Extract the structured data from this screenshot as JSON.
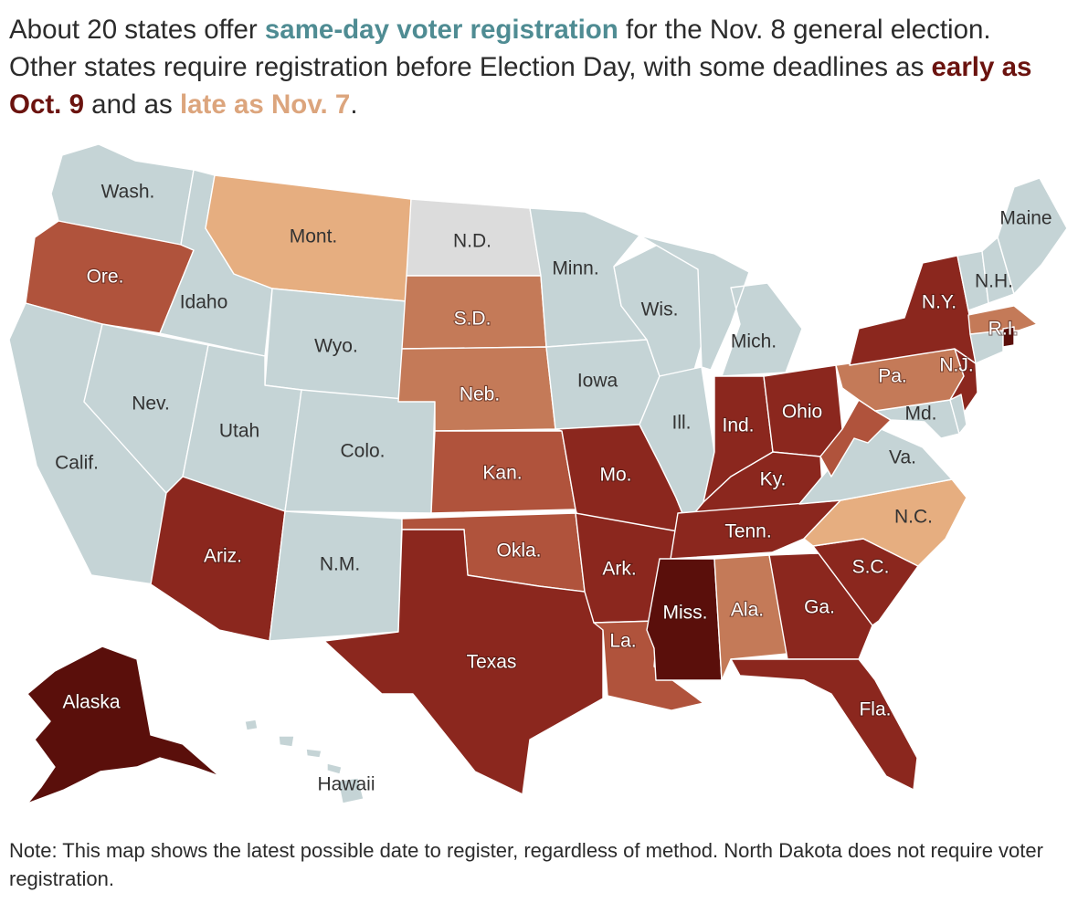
{
  "headline": {
    "part1": "About 20 states offer ",
    "same_day": "same-day voter registration",
    "part2": " for the Nov. 8 general election. Other states require registration before Election Day, with some deadlines as ",
    "early": "early as Oct. 9",
    "part3": " and as ",
    "late": "late as Nov. 7",
    "part4": "."
  },
  "colors": {
    "same_day": "#c5d4d6",
    "no_registration": "#dcdcdc",
    "tier_late": "#e6ae80",
    "tier_mid": "#c47a58",
    "tier_midlate": "#b0533c",
    "tier_early": "#8b271e",
    "tier_earliest": "#5a0f0b",
    "headline_teal": "#4f8c93",
    "headline_dark": "#6b130f",
    "headline_light": "#dca57d"
  },
  "states": {
    "wa": "Wash.",
    "or": "Ore.",
    "ca": "Calif.",
    "nv": "Nev.",
    "id": "Idaho",
    "mt": "Mont.",
    "wy": "Wyo.",
    "ut": "Utah",
    "az": "Ariz.",
    "co": "Colo.",
    "nm": "N.M.",
    "nd": "N.D.",
    "sd": "S.D.",
    "ne": "Neb.",
    "ks": "Kan.",
    "ok": "Okla.",
    "tx": "Texas",
    "mn": "Minn.",
    "ia": "Iowa",
    "mo": "Mo.",
    "ar": "Ark.",
    "la": "La.",
    "wi": "Wis.",
    "il": "Ill.",
    "mi": "Mich.",
    "in": "Ind.",
    "oh": "Ohio",
    "ky": "Ky.",
    "tn": "Tenn.",
    "ms": "Miss.",
    "al": "Ala.",
    "ga": "Ga.",
    "fl": "Fla.",
    "sc": "S.C.",
    "nc": "N.C.",
    "va": "Va.",
    "md": "Md.",
    "pa": "Pa.",
    "nj": "N.J.",
    "ny": "N.Y.",
    "ri": "R.I.",
    "nh": "N.H.",
    "me": "Maine",
    "ak": "Alaska",
    "hi": "Hawaii"
  },
  "note": "Note: This map shows the latest possible date to register, regardless of method. North Dakota does not require voter registration."
}
